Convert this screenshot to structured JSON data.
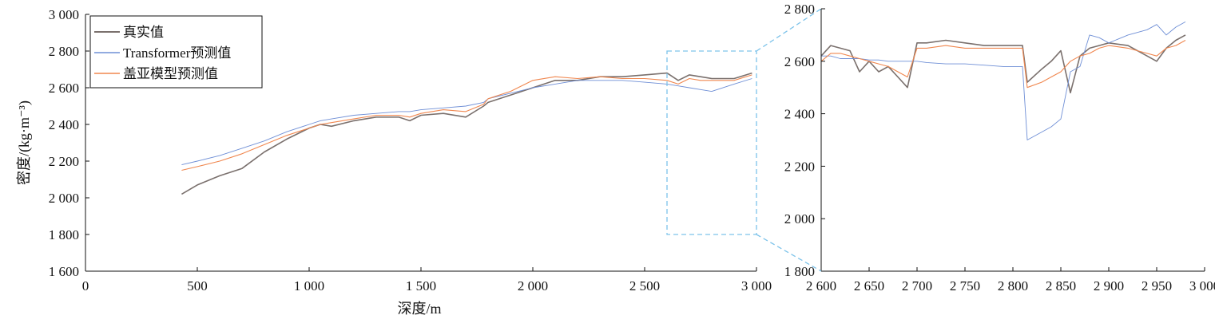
{
  "colors": {
    "true": "#7a706d",
    "transformer": "#6f8fd6",
    "hybrid": "#f0874f",
    "zoom": "#7dc3ea",
    "axis": "#111111"
  },
  "chart_data": [
    {
      "type": "line",
      "xlabel": "深度/m",
      "ylabel": "密度/(kg·m⁻³)",
      "xlim": [
        0,
        3000
      ],
      "ylim": [
        1600,
        3000
      ],
      "xticks": [
        0,
        500,
        1000,
        1500,
        2000,
        2500,
        3000
      ],
      "xtick_labels": [
        "0",
        "500",
        "1 000",
        "1 500",
        "2 000",
        "2 500",
        "3 000"
      ],
      "yticks": [
        1600,
        1800,
        2000,
        2200,
        2400,
        2600,
        2800,
        3000
      ],
      "ytick_labels": [
        "1 600",
        "1 800",
        "2 000",
        "2 200",
        "2 400",
        "2 600",
        "2 800",
        "3 000"
      ],
      "legend": {
        "position": "top-left",
        "entries": [
          "真实值",
          "Transformer预测值",
          "盖亚模型预测值"
        ]
      },
      "grid": false,
      "highlight_box": {
        "x": [
          2600,
          3000
        ],
        "y": [
          1800,
          2800
        ]
      },
      "series": [
        {
          "name": "真实值",
          "x": [
            430,
            500,
            600,
            700,
            800,
            900,
            1000,
            1050,
            1100,
            1200,
            1300,
            1400,
            1450,
            1500,
            1600,
            1700,
            1780,
            1800,
            1900,
            2000,
            2100,
            2200,
            2300,
            2400,
            2500,
            2600,
            2650,
            2700,
            2750,
            2800,
            2900,
            2980
          ],
          "y": [
            2020,
            2070,
            2120,
            2160,
            2250,
            2320,
            2380,
            2400,
            2390,
            2420,
            2440,
            2440,
            2420,
            2450,
            2460,
            2440,
            2500,
            2520,
            2560,
            2600,
            2640,
            2640,
            2660,
            2660,
            2670,
            2680,
            2640,
            2670,
            2660,
            2650,
            2650,
            2680
          ]
        },
        {
          "name": "Transformer预测值",
          "x": [
            430,
            500,
            600,
            700,
            800,
            900,
            1000,
            1050,
            1100,
            1200,
            1300,
            1400,
            1450,
            1500,
            1600,
            1700,
            1780,
            1800,
            1900,
            2000,
            2100,
            2200,
            2300,
            2400,
            2500,
            2600,
            2650,
            2700,
            2750,
            2800,
            2900,
            2980
          ],
          "y": [
            2180,
            2200,
            2230,
            2270,
            2310,
            2360,
            2400,
            2420,
            2430,
            2450,
            2460,
            2470,
            2470,
            2480,
            2490,
            2500,
            2520,
            2540,
            2570,
            2600,
            2620,
            2640,
            2640,
            2640,
            2630,
            2620,
            2610,
            2600,
            2590,
            2580,
            2620,
            2650
          ]
        },
        {
          "name": "盖亚模型预测值",
          "x": [
            430,
            500,
            600,
            700,
            800,
            900,
            1000,
            1050,
            1100,
            1200,
            1300,
            1400,
            1450,
            1500,
            1600,
            1700,
            1780,
            1800,
            1900,
            2000,
            2100,
            2200,
            2300,
            2400,
            2500,
            2600,
            2650,
            2700,
            2750,
            2800,
            2900,
            2980
          ],
          "y": [
            2150,
            2170,
            2200,
            2240,
            2290,
            2340,
            2380,
            2400,
            2410,
            2430,
            2450,
            2450,
            2440,
            2460,
            2480,
            2470,
            2510,
            2540,
            2580,
            2640,
            2660,
            2650,
            2660,
            2650,
            2650,
            2640,
            2620,
            2650,
            2640,
            2640,
            2640,
            2670
          ]
        }
      ]
    },
    {
      "type": "line",
      "xlabel": "",
      "ylabel": "",
      "xlim": [
        2600,
        3000
      ],
      "ylim": [
        1800,
        2800
      ],
      "xticks": [
        2600,
        2650,
        2700,
        2750,
        2800,
        2850,
        2900,
        2950,
        3000
      ],
      "xtick_labels": [
        "2 600",
        "2 650",
        "2 700",
        "2 750",
        "2 800",
        "2 850",
        "2 900",
        "2 950",
        "3 000"
      ],
      "yticks": [
        1800,
        2000,
        2200,
        2400,
        2600,
        2800
      ],
      "ytick_labels": [
        "1 800",
        "2 000",
        "2 200",
        "2 400",
        "2 600",
        "2 800"
      ],
      "grid": false,
      "series": [
        {
          "name": "真实值",
          "x": [
            2600,
            2610,
            2620,
            2630,
            2640,
            2650,
            2660,
            2670,
            2680,
            2690,
            2700,
            2710,
            2730,
            2750,
            2770,
            2790,
            2810,
            2815,
            2830,
            2840,
            2850,
            2860,
            2870,
            2880,
            2890,
            2900,
            2920,
            2940,
            2950,
            2960,
            2970,
            2980
          ],
          "y": [
            2620,
            2660,
            2650,
            2640,
            2560,
            2600,
            2560,
            2580,
            2540,
            2500,
            2670,
            2670,
            2680,
            2670,
            2660,
            2660,
            2660,
            2520,
            2570,
            2600,
            2640,
            2480,
            2620,
            2650,
            2660,
            2670,
            2660,
            2620,
            2600,
            2650,
            2680,
            2700
          ]
        },
        {
          "name": "Transformer预测值",
          "x": [
            2600,
            2610,
            2620,
            2630,
            2640,
            2650,
            2660,
            2670,
            2680,
            2690,
            2700,
            2710,
            2730,
            2750,
            2770,
            2790,
            2810,
            2815,
            2830,
            2840,
            2850,
            2860,
            2870,
            2880,
            2890,
            2900,
            2920,
            2940,
            2950,
            2960,
            2970,
            2980
          ],
          "y": [
            2620,
            2620,
            2610,
            2610,
            2610,
            2605,
            2605,
            2600,
            2600,
            2600,
            2600,
            2595,
            2590,
            2590,
            2585,
            2580,
            2580,
            2300,
            2330,
            2350,
            2380,
            2560,
            2580,
            2700,
            2690,
            2670,
            2700,
            2720,
            2740,
            2700,
            2730,
            2750
          ]
        },
        {
          "name": "盖亚模型预测值",
          "x": [
            2600,
            2610,
            2620,
            2630,
            2640,
            2650,
            2660,
            2670,
            2680,
            2690,
            2700,
            2710,
            2730,
            2750,
            2770,
            2790,
            2810,
            2815,
            2830,
            2840,
            2850,
            2860,
            2870,
            2880,
            2890,
            2900,
            2920,
            2940,
            2950,
            2960,
            2970,
            2980
          ],
          "y": [
            2600,
            2630,
            2630,
            2620,
            2610,
            2600,
            2590,
            2580,
            2560,
            2540,
            2650,
            2650,
            2660,
            2650,
            2650,
            2650,
            2650,
            2500,
            2520,
            2540,
            2560,
            2600,
            2620,
            2630,
            2650,
            2660,
            2650,
            2630,
            2620,
            2650,
            2660,
            2680
          ]
        }
      ]
    }
  ]
}
